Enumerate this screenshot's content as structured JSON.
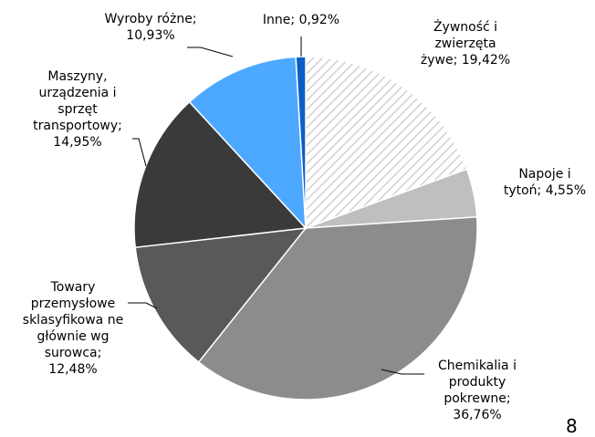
{
  "chart_data": {
    "type": "pie",
    "values": [
      19.42,
      4.55,
      36.76,
      12.48,
      14.95,
      10.93,
      0.92
    ],
    "value_labels": [
      "Żywność i zwierzęta żywe; 19,42%",
      "Napoje i tytoń; 4,55%",
      "Chemikalia i produkty pokrewne; 36,76%",
      "Towary przemysłowe sklasyfikowa ne głównie wg surowca; 12,48%",
      "Maszyny, urządzenia i sprzęt transportowy; 14,95%",
      "Wyroby różne; 10,93%",
      "Inne; 0,92%"
    ],
    "colors": [
      "hatch",
      "#bfbfbf",
      "#8c8c8c",
      "#595959",
      "#3a3a3a",
      "#4da9ff",
      "#0a5fc7"
    ]
  },
  "page_number": "8"
}
